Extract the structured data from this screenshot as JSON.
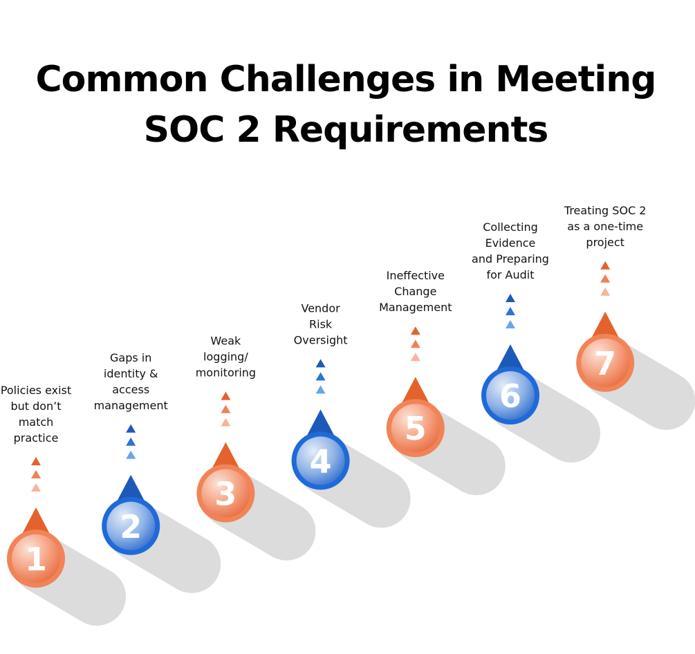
{
  "title_lines": [
    "Common Challenges in Meeting",
    "SOC 2 Requirements"
  ],
  "items": [
    {
      "number": "1",
      "label_lines": [
        "Policies exist",
        "but don’t",
        "match",
        "practice"
      ]
    },
    {
      "number": "2",
      "label_lines": [
        "Gaps in",
        "identity &",
        "access",
        "management"
      ]
    },
    {
      "number": "3",
      "label_lines": [
        "Weak",
        "logging/",
        "monitoring"
      ]
    },
    {
      "number": "4",
      "label_lines": [
        "Vendor",
        "Risk",
        "Oversight"
      ]
    },
    {
      "number": "5",
      "label_lines": [
        "Ineffective",
        "Change",
        "Management"
      ]
    },
    {
      "number": "6",
      "label_lines": [
        "Collecting",
        "Evidence",
        "and Preparing",
        "for Audit"
      ]
    },
    {
      "number": "7",
      "label_lines": [
        "Treating SOC 2",
        "as a one-time",
        "project"
      ]
    }
  ]
}
